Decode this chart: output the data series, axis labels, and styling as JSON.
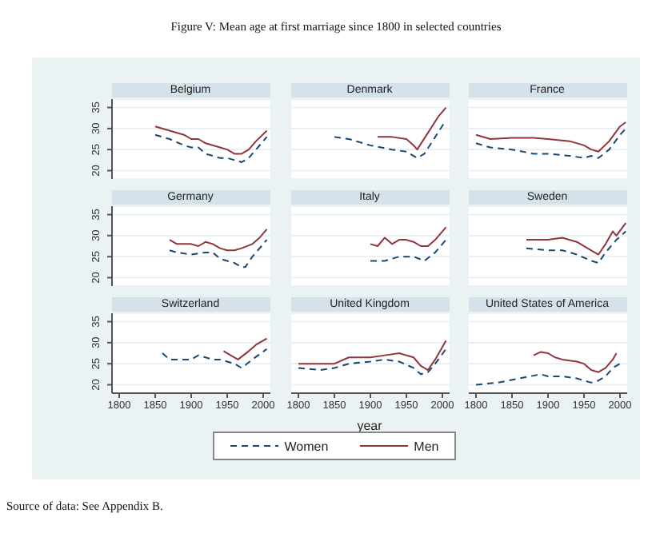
{
  "chart_data": [
    {
      "type": "line",
      "title": "Belgium",
      "legend": "bottom",
      "annotations": [
        "Figure V: Mean age at first marriage since 1800 in selected countries",
        "Source of data: See Appendix B."
      ],
      "xlim": [
        1790,
        2010
      ],
      "xticks": [
        1800,
        1850,
        1900,
        1950,
        2000
      ],
      "ylim": [
        18,
        37
      ],
      "yticks": [
        20,
        25,
        30,
        35
      ],
      "grid": "y",
      "tick_labels": "y",
      "series": [
        {
          "name": "Women",
          "color": "#1a476f",
          "line_style": "dashed",
          "x": [
            1850,
            1870,
            1890,
            1900,
            1910,
            1920,
            1940,
            1950,
            1970,
            1980,
            1990,
            2005
          ],
          "values": [
            28.5,
            27.5,
            26,
            25.5,
            25.5,
            24,
            23,
            23,
            22,
            23,
            25,
            28
          ]
        },
        {
          "name": "Men",
          "color": "#90353b",
          "line_style": "solid",
          "x": [
            1850,
            1870,
            1890,
            1900,
            1910,
            1920,
            1940,
            1950,
            1960,
            1970,
            1980,
            1990,
            2005
          ],
          "values": [
            30.5,
            29.5,
            28.5,
            27.5,
            27.5,
            26.5,
            25.5,
            25,
            24,
            24,
            25,
            27,
            29.5
          ]
        }
      ]
    },
    {
      "type": "line",
      "title": "Denmark",
      "xlim": [
        1790,
        2010
      ],
      "xticks": [
        1800,
        1850,
        1900,
        1950,
        2000
      ],
      "ylim": [
        18,
        37
      ],
      "yticks": [
        20,
        25,
        30,
        35
      ],
      "grid": "y",
      "tick_labels": false,
      "series": [
        {
          "color": "#1a476f",
          "line_style": "dashed",
          "x": [
            1850,
            1870,
            1900,
            1930,
            1950,
            1965,
            1975,
            1990,
            2005
          ],
          "values": [
            28,
            27.5,
            26,
            25,
            24.5,
            23,
            24,
            28,
            32
          ]
        },
        {
          "color": "#90353b",
          "line_style": "solid",
          "x": [
            1910,
            1930,
            1950,
            1960,
            1965,
            1980,
            1995,
            2005
          ],
          "values": [
            28,
            28,
            27.5,
            26,
            25,
            29,
            33,
            35
          ]
        }
      ]
    },
    {
      "type": "line",
      "title": "France",
      "xlim": [
        1790,
        2010
      ],
      "xticks": [
        1800,
        1850,
        1900,
        1950,
        2000
      ],
      "ylim": [
        18,
        37
      ],
      "yticks": [
        20,
        25,
        30,
        35
      ],
      "grid": "y",
      "tick_labels": false,
      "series": [
        {
          "color": "#1a476f",
          "line_style": "dashed",
          "x": [
            1800,
            1820,
            1850,
            1880,
            1900,
            1930,
            1950,
            1960,
            1970,
            1985,
            2000,
            2008
          ],
          "values": [
            26.5,
            25.5,
            25,
            24,
            24,
            23.5,
            23,
            23.5,
            23,
            25,
            28.5,
            30
          ]
        },
        {
          "color": "#90353b",
          "line_style": "solid",
          "x": [
            1800,
            1820,
            1850,
            1880,
            1900,
            1930,
            1950,
            1960,
            1970,
            1985,
            2000,
            2008
          ],
          "values": [
            28.5,
            27.5,
            27.8,
            27.8,
            27.5,
            27,
            26,
            25,
            24.5,
            27,
            30.5,
            31.5
          ]
        }
      ]
    },
    {
      "type": "line",
      "title": "Germany",
      "xlim": [
        1790,
        2010
      ],
      "xticks": [
        1800,
        1850,
        1900,
        1950,
        2000
      ],
      "ylim": [
        18,
        37
      ],
      "yticks": [
        20,
        25,
        30,
        35
      ],
      "grid": "y",
      "tick_labels": "y",
      "series": [
        {
          "color": "#1a476f",
          "line_style": "dashed",
          "x": [
            1870,
            1880,
            1900,
            1920,
            1930,
            1940,
            1960,
            1970,
            1975,
            1985,
            2005
          ],
          "values": [
            26.5,
            26,
            25.5,
            26,
            26,
            24.5,
            23.5,
            22.5,
            22.5,
            25,
            29
          ]
        },
        {
          "color": "#90353b",
          "line_style": "solid",
          "x": [
            1870,
            1880,
            1900,
            1910,
            1920,
            1930,
            1940,
            1950,
            1960,
            1970,
            1985,
            1995,
            2005
          ],
          "values": [
            29,
            28,
            28,
            27.5,
            28.5,
            28,
            27,
            26.5,
            26.5,
            27,
            28,
            29.5,
            31.5
          ]
        }
      ]
    },
    {
      "type": "line",
      "title": "Italy",
      "xlim": [
        1790,
        2010
      ],
      "xticks": [
        1800,
        1850,
        1900,
        1950,
        2000
      ],
      "ylim": [
        18,
        37
      ],
      "yticks": [
        20,
        25,
        30,
        35
      ],
      "grid": "y",
      "tick_labels": false,
      "series": [
        {
          "color": "#1a476f",
          "line_style": "dashed",
          "x": [
            1900,
            1920,
            1940,
            1960,
            1975,
            1990,
            2005
          ],
          "values": [
            24,
            24,
            25,
            25,
            24,
            26,
            29
          ]
        },
        {
          "color": "#90353b",
          "line_style": "solid",
          "x": [
            1900,
            1910,
            1920,
            1930,
            1940,
            1950,
            1960,
            1970,
            1980,
            1990,
            2005
          ],
          "values": [
            28,
            27.5,
            29.5,
            28,
            29,
            29,
            28.5,
            27.5,
            27.5,
            29,
            32
          ]
        }
      ]
    },
    {
      "type": "line",
      "title": "Sweden",
      "xlim": [
        1790,
        2010
      ],
      "xticks": [
        1800,
        1850,
        1900,
        1950,
        2000
      ],
      "ylim": [
        18,
        37
      ],
      "yticks": [
        20,
        25,
        30,
        35
      ],
      "grid": "y",
      "tick_labels": false,
      "series": [
        {
          "color": "#1a476f",
          "line_style": "dashed",
          "x": [
            1870,
            1900,
            1920,
            1940,
            1960,
            1970,
            1980,
            1995,
            2008
          ],
          "values": [
            27,
            26.5,
            26.5,
            25.5,
            24,
            23.5,
            26,
            29,
            31
          ]
        },
        {
          "color": "#90353b",
          "line_style": "solid",
          "x": [
            1870,
            1900,
            1920,
            1940,
            1960,
            1970,
            1980,
            1990,
            1995,
            2008
          ],
          "values": [
            29,
            29,
            29.5,
            28.5,
            26.5,
            25.5,
            28,
            31,
            30,
            33
          ]
        }
      ]
    },
    {
      "type": "line",
      "title": "Switzerland",
      "xlim": [
        1790,
        2010
      ],
      "xticks": [
        1800,
        1850,
        1900,
        1950,
        2000
      ],
      "ylim": [
        18,
        37
      ],
      "yticks": [
        20,
        25,
        30,
        35
      ],
      "grid": "y",
      "series": [
        {
          "color": "#1a476f",
          "line_style": "dashed",
          "x": [
            1860,
            1870,
            1880,
            1900,
            1910,
            1920,
            1930,
            1940,
            1950,
            1960,
            1970,
            1985,
            2005
          ],
          "values": [
            27.5,
            26,
            26,
            26,
            27,
            26.5,
            26,
            26,
            25.5,
            25,
            24,
            26,
            28.5
          ]
        },
        {
          "color": "#90353b",
          "line_style": "solid",
          "x": [
            1945,
            1960,
            1965,
            1980,
            1990,
            2005
          ],
          "values": [
            28,
            26.5,
            26,
            28,
            29.5,
            31
          ]
        }
      ]
    },
    {
      "type": "line",
      "title": "United Kingdom",
      "xlabel": "year",
      "xlim": [
        1790,
        2010
      ],
      "xticks": [
        1800,
        1850,
        1900,
        1950,
        2000
      ],
      "ylim": [
        18,
        37
      ],
      "yticks": [
        20,
        25,
        30,
        35
      ],
      "grid": "y",
      "tick_labels": "x",
      "series": [
        {
          "color": "#1a476f",
          "line_style": "dashed",
          "x": [
            1800,
            1830,
            1850,
            1870,
            1900,
            1920,
            1940,
            1960,
            1970,
            1980,
            1990,
            2005
          ],
          "values": [
            24,
            23.5,
            24,
            25,
            25.5,
            26,
            25.5,
            24,
            22.5,
            23,
            25,
            28.5
          ]
        },
        {
          "color": "#90353b",
          "line_style": "solid",
          "x": [
            1800,
            1830,
            1850,
            1870,
            1900,
            1920,
            1940,
            1960,
            1970,
            1980,
            1990,
            2005
          ],
          "values": [
            25,
            25,
            25,
            26.5,
            26.5,
            27,
            27.5,
            26.5,
            24.5,
            23.5,
            26,
            30.5
          ]
        }
      ]
    },
    {
      "type": "line",
      "title": "United States of America",
      "xlim": [
        1790,
        2010
      ],
      "xticks": [
        1800,
        1850,
        1900,
        1950,
        2000
      ],
      "ylim": [
        18,
        37
      ],
      "yticks": [
        20,
        25,
        30,
        35
      ],
      "grid": "y",
      "tick_labels": "x",
      "series": [
        {
          "color": "#1a476f",
          "line_style": "dashed",
          "x": [
            1800,
            1830,
            1860,
            1890,
            1900,
            1920,
            1940,
            1960,
            1970,
            1980,
            1990,
            2005
          ],
          "values": [
            20,
            20.5,
            21.5,
            22.5,
            22,
            22,
            21.5,
            20.5,
            21,
            22,
            24,
            25.5
          ]
        },
        {
          "color": "#90353b",
          "line_style": "solid",
          "x": [
            1880,
            1890,
            1900,
            1910,
            1920,
            1940,
            1950,
            1960,
            1970,
            1980,
            1990,
            1995
          ],
          "values": [
            27,
            27.8,
            27.5,
            26.5,
            26,
            25.5,
            25,
            23.5,
            23,
            24,
            26,
            27.5
          ]
        }
      ]
    }
  ]
}
